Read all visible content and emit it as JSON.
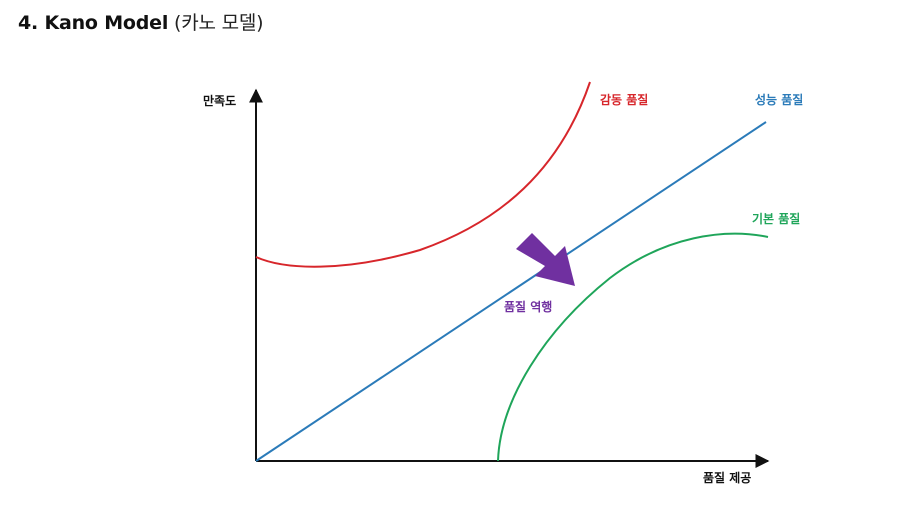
{
  "title": {
    "main": "4. Kano Model",
    "sub": "(카노 모델)"
  },
  "axes": {
    "y_label": "만족도",
    "x_label": "품질 제공"
  },
  "curves": {
    "attractive": {
      "label": "감동 품질",
      "color": "#d7262b"
    },
    "performance": {
      "label": "성능 품질",
      "color": "#2b7bb9"
    },
    "must_be": {
      "label": "기본 품질",
      "color": "#1fa55a"
    }
  },
  "reverse": {
    "label": "품질 역행",
    "color": "#7030a0"
  }
}
